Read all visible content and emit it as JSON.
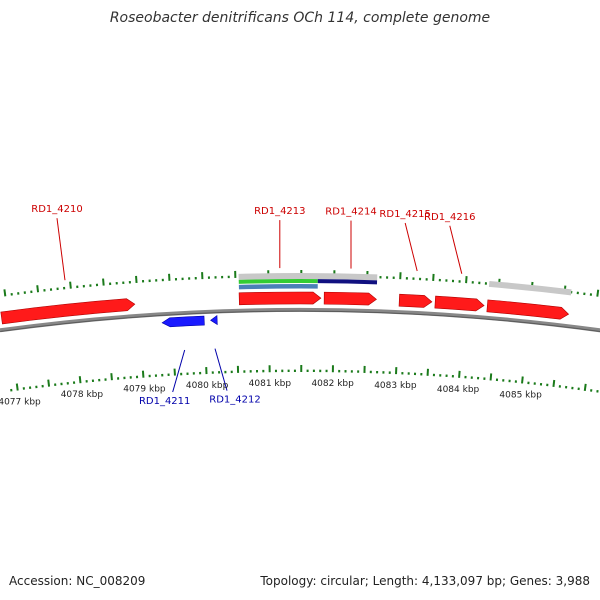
{
  "title": "Roseobacter denitrificans OCh 114, complete genome",
  "footer": {
    "accession": "Accession: NC_008209",
    "summary": "Topology: circular; Length: 4,133,097 bp; Genes: 3,988"
  },
  "colors": {
    "forward_gene": "#ff1a1a",
    "reverse_gene": "#1a1aff",
    "forward_label": "#cc0000",
    "reverse_label": "#0000aa",
    "tick": "#1a7a1a",
    "backbone": "#888888",
    "gray_feature": "#c8c8c8",
    "green_feature": "#33cc33",
    "navy_feature": "#101080",
    "steel_feature": "#4a80b8"
  },
  "scale_labels": [
    {
      "label": "4077 kbp",
      "kbp": 4077
    },
    {
      "label": "4078 kbp",
      "kbp": 4078
    },
    {
      "label": "4079 kbp",
      "kbp": 4079
    },
    {
      "label": "4080 kbp",
      "kbp": 4080
    },
    {
      "label": "4081 kbp",
      "kbp": 4081
    },
    {
      "label": "4082 kbp",
      "kbp": 4082
    },
    {
      "label": "4083 kbp",
      "kbp": 4083
    },
    {
      "label": "4084 kbp",
      "kbp": 4084
    },
    {
      "label": "4085 kbp",
      "kbp": 4085
    }
  ],
  "genes": [
    {
      "name": "RD1_4210",
      "strand": "forward",
      "start_kbp": 4076.9,
      "end_kbp": 4078.95
    },
    {
      "name": "RD1_4211",
      "strand": "reverse",
      "start_kbp": 4079.35,
      "end_kbp": 4080.0
    },
    {
      "name": "RD1_4212",
      "strand": "reverse",
      "start_kbp": 4080.1,
      "end_kbp": 4080.2
    },
    {
      "name": "RD1_4213",
      "strand": "forward",
      "start_kbp": 4080.55,
      "end_kbp": 4081.8
    },
    {
      "name": "RD1_4214",
      "strand": "forward",
      "start_kbp": 4081.85,
      "end_kbp": 4082.65
    },
    {
      "name": "RD1_4215",
      "strand": "forward",
      "start_kbp": 4083.0,
      "end_kbp": 4083.5
    },
    {
      "name": "RD1_4216",
      "strand": "forward",
      "start_kbp": 4083.55,
      "end_kbp": 4084.3
    },
    {
      "name": "",
      "strand": "forward",
      "start_kbp": 4084.35,
      "end_kbp": 4085.6
    }
  ],
  "features": [
    {
      "kind": "gray",
      "start_kbp": 4080.55,
      "end_kbp": 4082.65
    },
    {
      "kind": "green",
      "start_kbp": 4080.55,
      "end_kbp": 4081.75
    },
    {
      "kind": "navy",
      "start_kbp": 4081.75,
      "end_kbp": 4082.65
    },
    {
      "kind": "steel",
      "start_kbp": 4080.55,
      "end_kbp": 4081.75
    },
    {
      "kind": "gray",
      "start_kbp": 4084.35,
      "end_kbp": 4085.6
    }
  ]
}
